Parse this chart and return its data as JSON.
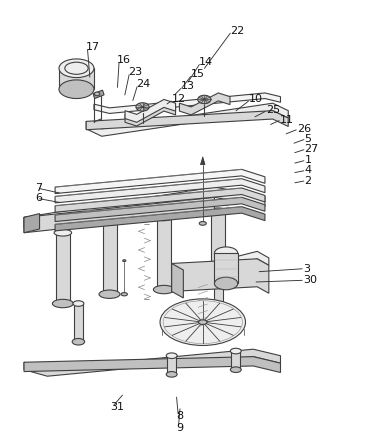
{
  "bg_color": "#ffffff",
  "fig_width": 3.9,
  "fig_height": 4.44,
  "dpi": 100,
  "line_color": "#404040",
  "text_color": "#111111",
  "font_size": 8.0,
  "label_positions": {
    "22": [
      0.59,
      0.955,
      0.52,
      0.87
    ],
    "17": [
      0.218,
      0.92,
      0.23,
      0.85
    ],
    "16": [
      0.3,
      0.893,
      0.3,
      0.828
    ],
    "14": [
      0.51,
      0.888,
      0.478,
      0.84
    ],
    "23": [
      0.327,
      0.867,
      0.318,
      0.812
    ],
    "15": [
      0.488,
      0.862,
      0.462,
      0.828
    ],
    "24": [
      0.348,
      0.841,
      0.338,
      0.8
    ],
    "13": [
      0.464,
      0.836,
      0.445,
      0.816
    ],
    "10": [
      0.638,
      0.808,
      0.6,
      0.78
    ],
    "12": [
      0.44,
      0.808,
      0.422,
      0.795
    ],
    "25": [
      0.682,
      0.785,
      0.648,
      0.768
    ],
    "11": [
      0.718,
      0.765,
      0.688,
      0.752
    ],
    "26": [
      0.762,
      0.745,
      0.728,
      0.732
    ],
    "5": [
      0.782,
      0.724,
      0.748,
      0.712
    ],
    "27": [
      0.782,
      0.702,
      0.75,
      0.692
    ],
    "1": [
      0.782,
      0.678,
      0.75,
      0.67
    ],
    "4": [
      0.782,
      0.656,
      0.75,
      0.65
    ],
    "2": [
      0.782,
      0.634,
      0.75,
      0.628
    ],
    "7": [
      0.088,
      0.618,
      0.158,
      0.606
    ],
    "6": [
      0.088,
      0.596,
      0.158,
      0.586
    ],
    "3": [
      0.778,
      0.445,
      0.658,
      0.438
    ],
    "30": [
      0.778,
      0.42,
      0.65,
      0.416
    ],
    "31": [
      0.282,
      0.148,
      0.318,
      0.178
    ],
    "8": [
      0.452,
      0.128,
      0.452,
      0.175
    ],
    "9": [
      0.452,
      0.102,
      0.462,
      0.15
    ]
  }
}
